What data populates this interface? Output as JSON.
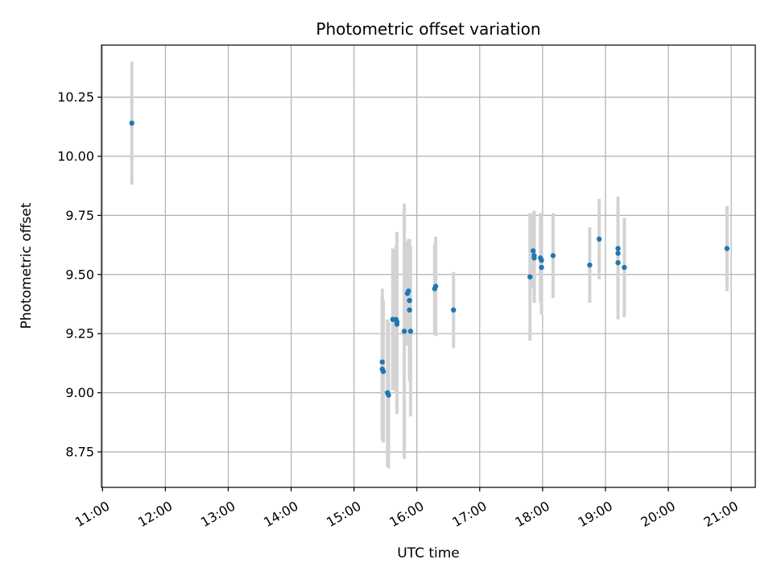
{
  "chart_data": {
    "type": "scatter",
    "title": "Photometric offset variation",
    "xlabel": "UTC time",
    "ylabel": "Photometric offset",
    "x_ticks": [
      "11:00",
      "12:00",
      "13:00",
      "14:00",
      "15:00",
      "16:00",
      "17:00",
      "18:00",
      "19:00",
      "20:00",
      "21:00"
    ],
    "y_ticks": [
      "8.75",
      "9.00",
      "9.25",
      "9.50",
      "9.75",
      "10.00",
      "10.25"
    ],
    "xlim": [
      "10:59",
      "21:23"
    ],
    "ylim": [
      8.6,
      10.47
    ],
    "grid": true,
    "colors": {
      "points": "#1f77b4",
      "errorbars": "#d3d3d3",
      "grid": "#b0b0b0"
    },
    "points": [
      {
        "x": "11:28",
        "y": 10.14,
        "err": 0.26
      },
      {
        "x": "15:27",
        "y": 9.13,
        "err": 0.31
      },
      {
        "x": "15:27",
        "y": 9.1,
        "err": 0.3
      },
      {
        "x": "15:28",
        "y": 9.09,
        "err": 0.3
      },
      {
        "x": "15:32",
        "y": 9.0,
        "err": 0.31
      },
      {
        "x": "15:33",
        "y": 8.99,
        "err": 0.31
      },
      {
        "x": "15:37",
        "y": 9.31,
        "err": 0.3
      },
      {
        "x": "15:40",
        "y": 9.31,
        "err": 0.31
      },
      {
        "x": "15:41",
        "y": 9.3,
        "err": 0.38
      },
      {
        "x": "15:41",
        "y": 9.29,
        "err": 0.38
      },
      {
        "x": "15:48",
        "y": 9.26,
        "err": 0.54
      },
      {
        "x": "15:51",
        "y": 9.42,
        "err": 0.22
      },
      {
        "x": "15:52",
        "y": 9.43,
        "err": 0.22
      },
      {
        "x": "15:53",
        "y": 9.39,
        "err": 0.26
      },
      {
        "x": "15:53",
        "y": 9.35,
        "err": 0.3
      },
      {
        "x": "15:54",
        "y": 9.26,
        "err": 0.36
      },
      {
        "x": "16:17",
        "y": 9.44,
        "err": 0.19
      },
      {
        "x": "16:18",
        "y": 9.45,
        "err": 0.21
      },
      {
        "x": "16:35",
        "y": 9.35,
        "err": 0.16
      },
      {
        "x": "17:48",
        "y": 9.49,
        "err": 0.27
      },
      {
        "x": "17:51",
        "y": 9.6,
        "err": 0.16
      },
      {
        "x": "17:52",
        "y": 9.58,
        "err": 0.19
      },
      {
        "x": "17:52",
        "y": 9.57,
        "err": 0.19
      },
      {
        "x": "17:58",
        "y": 9.57,
        "err": 0.19
      },
      {
        "x": "17:59",
        "y": 9.56,
        "err": 0.19
      },
      {
        "x": "17:59",
        "y": 9.53,
        "err": 0.2
      },
      {
        "x": "18:10",
        "y": 9.58,
        "err": 0.18
      },
      {
        "x": "18:45",
        "y": 9.54,
        "err": 0.16
      },
      {
        "x": "18:54",
        "y": 9.65,
        "err": 0.17
      },
      {
        "x": "19:12",
        "y": 9.61,
        "err": 0.22
      },
      {
        "x": "19:12",
        "y": 9.59,
        "err": 0.22
      },
      {
        "x": "19:12",
        "y": 9.55,
        "err": 0.24
      },
      {
        "x": "19:18",
        "y": 9.53,
        "err": 0.21
      },
      {
        "x": "20:56",
        "y": 9.61,
        "err": 0.18
      }
    ]
  }
}
